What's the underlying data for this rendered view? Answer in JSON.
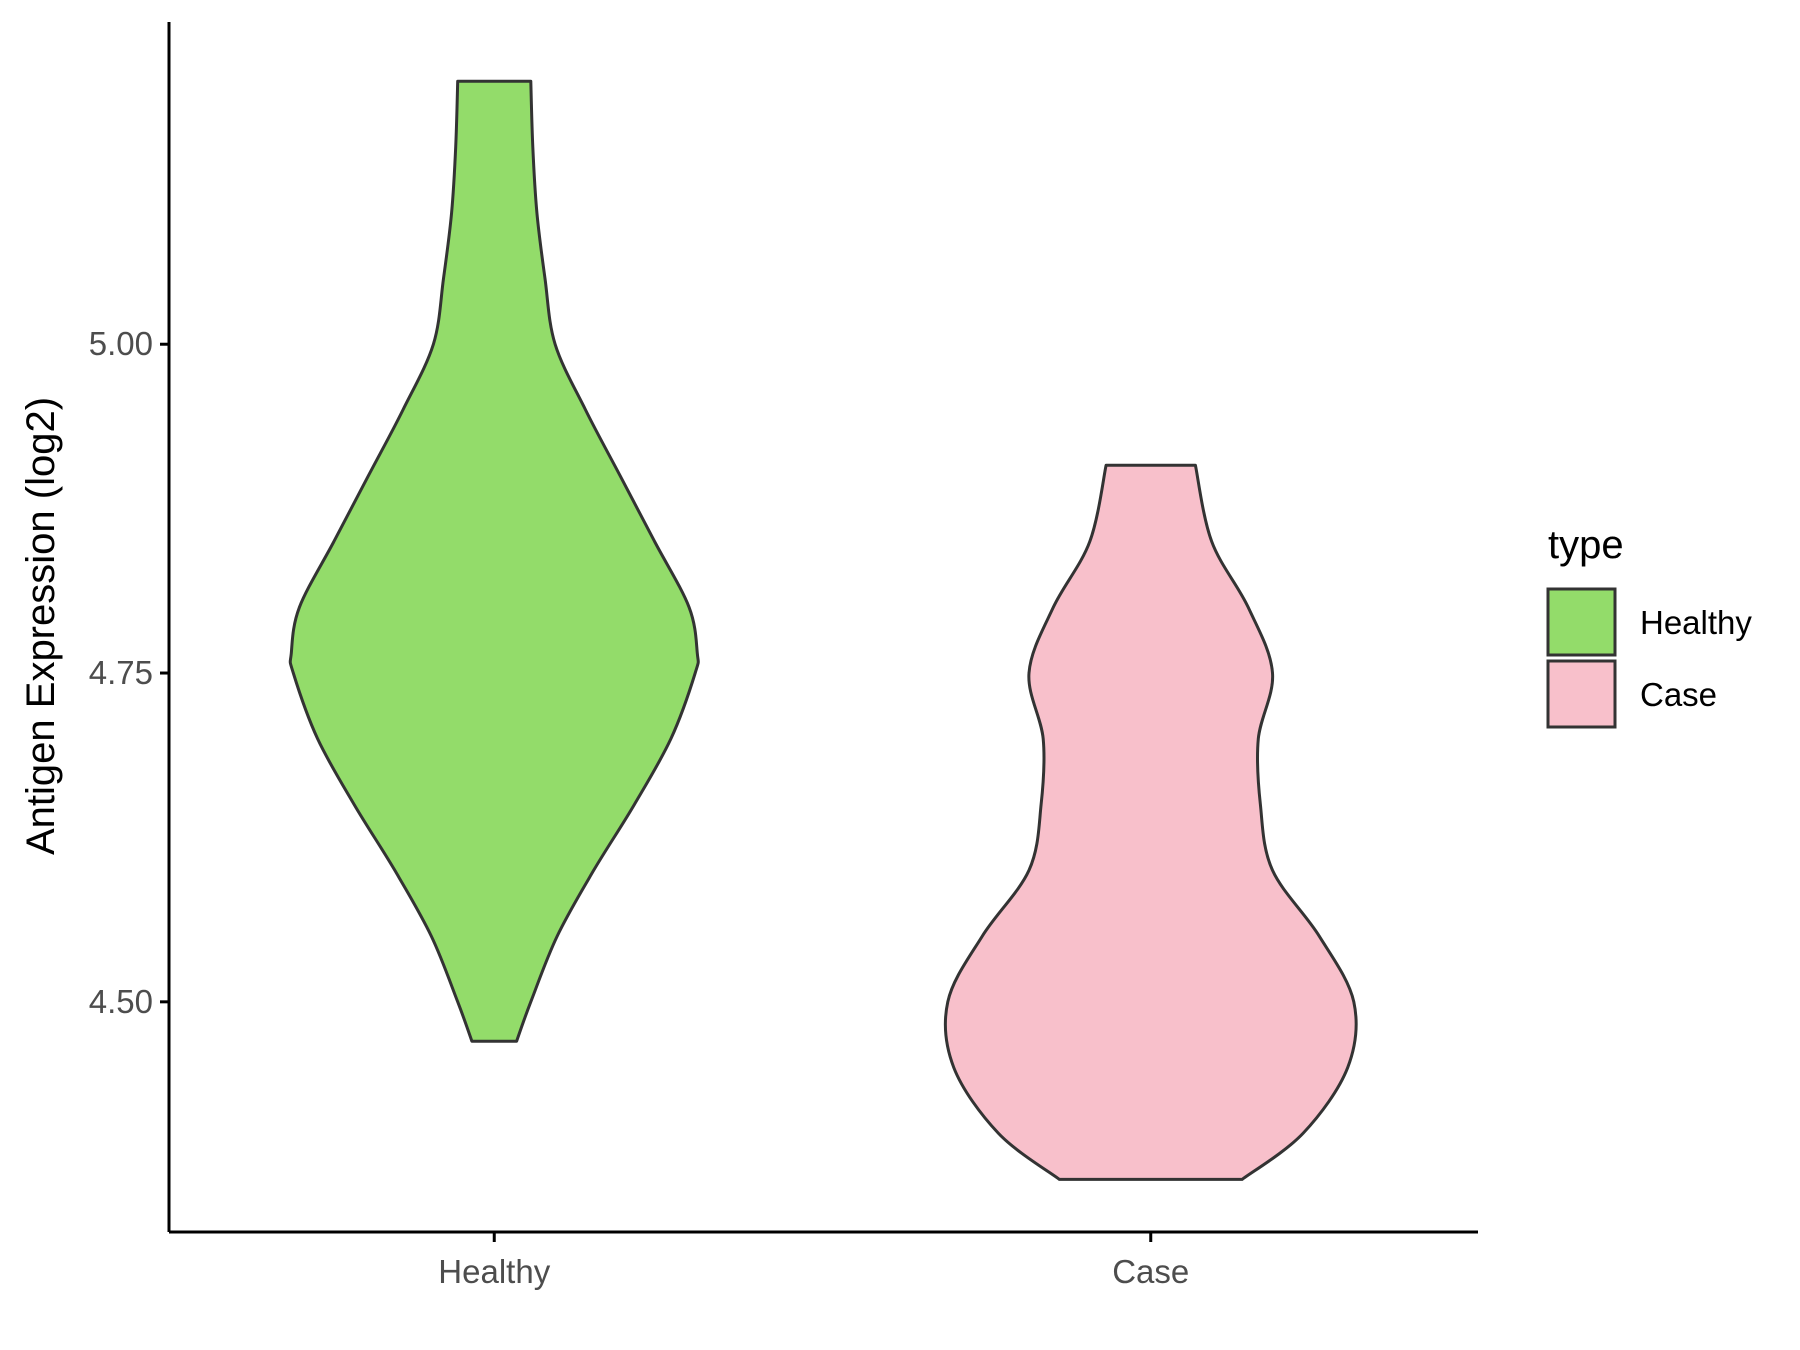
{
  "chart_data": {
    "type": "violin",
    "xlabel": "",
    "ylabel": "Antigen Expression (log2)",
    "ylim": [
      4.325,
      5.245
    ],
    "yticks": [
      4.5,
      4.75,
      5.0
    ],
    "ytick_labels": [
      "4.50",
      "4.75",
      "5.00"
    ],
    "categories": [
      "Healthy",
      "Case"
    ],
    "grid": false,
    "legend": {
      "title": "type",
      "position": "right",
      "entries": [
        {
          "label": "Healthy",
          "color": "#93dc6a"
        },
        {
          "label": "Case",
          "color": "#f8c0cb"
        }
      ]
    },
    "series": [
      {
        "category": "Healthy",
        "color": "#93dc6a",
        "min": 4.47,
        "max": 5.2,
        "density": [
          [
            4.47,
            0.11
          ],
          [
            4.5,
            0.18
          ],
          [
            4.55,
            0.31
          ],
          [
            4.6,
            0.49
          ],
          [
            4.65,
            0.69
          ],
          [
            4.7,
            0.87
          ],
          [
            4.75,
            0.99
          ],
          [
            4.765,
            1.0
          ],
          [
            4.8,
            0.96
          ],
          [
            4.85,
            0.79
          ],
          [
            4.9,
            0.62
          ],
          [
            4.95,
            0.45
          ],
          [
            5.0,
            0.3
          ],
          [
            5.05,
            0.25
          ],
          [
            5.1,
            0.21
          ],
          [
            5.15,
            0.19
          ],
          [
            5.2,
            0.18
          ]
        ]
      },
      {
        "category": "Case",
        "color": "#f8c0cb",
        "min": 4.365,
        "max": 4.908,
        "density": [
          [
            4.365,
            0.45
          ],
          [
            4.4,
            0.75
          ],
          [
            4.45,
            0.97
          ],
          [
            4.5,
            1.0
          ],
          [
            4.55,
            0.83
          ],
          [
            4.6,
            0.6
          ],
          [
            4.65,
            0.54
          ],
          [
            4.7,
            0.53
          ],
          [
            4.75,
            0.6
          ],
          [
            4.8,
            0.48
          ],
          [
            4.85,
            0.3
          ],
          [
            4.908,
            0.22
          ]
        ]
      }
    ]
  }
}
